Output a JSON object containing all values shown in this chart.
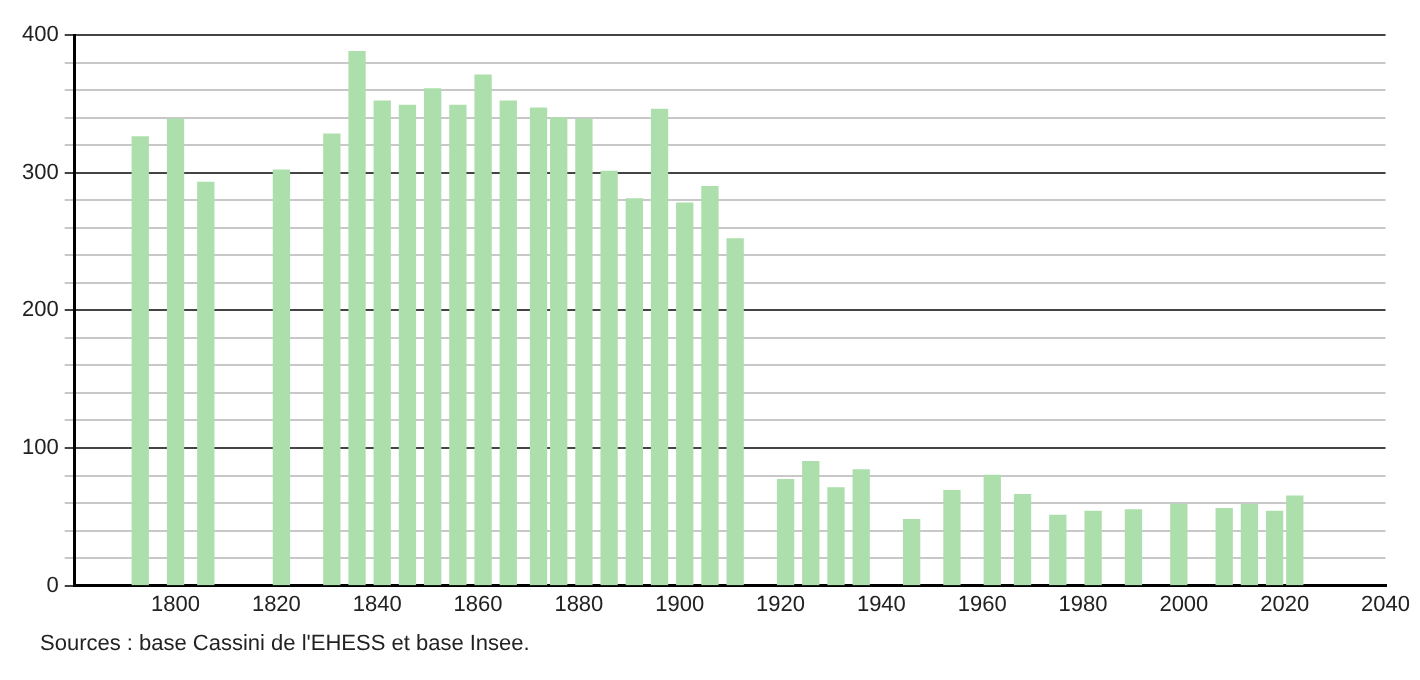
{
  "chart_data": {
    "type": "bar",
    "x": [
      1793,
      1800,
      1806,
      1821,
      1831,
      1836,
      1841,
      1846,
      1851,
      1856,
      1861,
      1866,
      1872,
      1876,
      1881,
      1886,
      1891,
      1896,
      1901,
      1906,
      1911,
      1921,
      1926,
      1931,
      1936,
      1946,
      1954,
      1962,
      1968,
      1975,
      1982,
      1990,
      1999,
      2008,
      2013,
      2018,
      2022
    ],
    "values": [
      326,
      339,
      293,
      302,
      328,
      388,
      352,
      349,
      361,
      349,
      371,
      352,
      347,
      340,
      339,
      301,
      281,
      346,
      278,
      290,
      252,
      77,
      90,
      71,
      84,
      48,
      69,
      80,
      66,
      51,
      54,
      55,
      59,
      56,
      59,
      54,
      65
    ],
    "color": "#addfad",
    "xlim": [
      1780,
      2040
    ],
    "xticks": [
      1800,
      1820,
      1840,
      1860,
      1880,
      1900,
      1920,
      1940,
      1960,
      1980,
      2000,
      2020,
      2040
    ],
    "ylim": [
      0,
      400
    ],
    "yticks": [
      0,
      {
        "value": 20,
        "label": null
      },
      {
        "value": 40,
        "label": null
      },
      {
        "value": 60,
        "label": null
      },
      {
        "value": 80,
        "label": null
      },
      100,
      {
        "value": 120,
        "label": null
      },
      {
        "value": 140,
        "label": null
      },
      {
        "value": 160,
        "label": null
      },
      {
        "value": 180,
        "label": null
      },
      200,
      {
        "value": 220,
        "label": null
      },
      {
        "value": 240,
        "label": null
      },
      {
        "value": 260,
        "label": null
      },
      {
        "value": 280,
        "label": null
      },
      300,
      {
        "value": 320,
        "label": null
      },
      {
        "value": 340,
        "label": null
      },
      {
        "value": 360,
        "label": null
      },
      {
        "value": 380,
        "label": null
      },
      400
    ],
    "grid": "y",
    "legend": false,
    "annotations": [
      "Sources : base Cassini de l'EHESS et base Insee."
    ]
  }
}
